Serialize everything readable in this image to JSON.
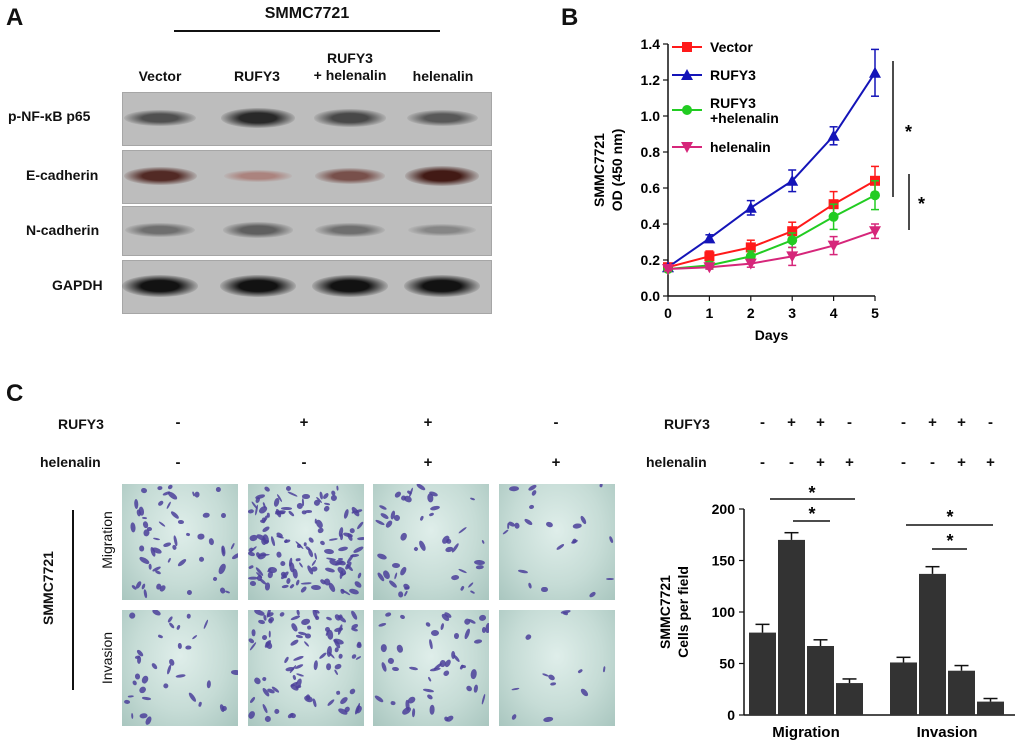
{
  "panels": {
    "a": "A",
    "b": "B",
    "c": "C"
  },
  "panel_a": {
    "cell_line": "SMMC7721",
    "lanes": [
      "Vector",
      "RUFY3",
      "RUFY3\n+ helenalin",
      "helenalin"
    ],
    "rows": [
      "p-NF-κB p65",
      "E-cadherin",
      "N-cadherin",
      "GAPDH"
    ],
    "band_intensity": [
      [
        0.55,
        0.8,
        0.6,
        0.5
      ],
      [
        0.7,
        0.12,
        0.45,
        0.8
      ],
      [
        0.35,
        0.45,
        0.35,
        0.2
      ],
      [
        0.95,
        0.95,
        0.95,
        0.95
      ]
    ]
  },
  "chart_data": [
    {
      "type": "line",
      "ylabel": "SMMC7721\nOD (450 nm)",
      "xlabel": "Days",
      "x": [
        0,
        1,
        2,
        3,
        4,
        5
      ],
      "xlim": [
        0,
        5
      ],
      "ylim": [
        0.0,
        1.4
      ],
      "yticks": [
        "0.0",
        "0.2",
        "0.4",
        "0.6",
        "0.8",
        "1.0",
        "1.2",
        "1.4"
      ],
      "legend_position": "top-left",
      "series": [
        {
          "name": "Vector",
          "color": "#ff1a1a",
          "marker": "square",
          "values": [
            0.16,
            0.22,
            0.27,
            0.36,
            0.51,
            0.64
          ],
          "errors": [
            0.01,
            0.03,
            0.04,
            0.05,
            0.07,
            0.08
          ]
        },
        {
          "name": "RUFY3",
          "color": "#1414b8",
          "marker": "triangle-up",
          "values": [
            0.16,
            0.32,
            0.49,
            0.64,
            0.89,
            1.24
          ],
          "errors": [
            0.01,
            0.02,
            0.04,
            0.06,
            0.05,
            0.13
          ]
        },
        {
          "name": "RUFY3\n+helenalin",
          "color": "#22cc22",
          "marker": "circle",
          "values": [
            0.15,
            0.17,
            0.22,
            0.31,
            0.44,
            0.56
          ],
          "errors": [
            0.01,
            0.02,
            0.03,
            0.04,
            0.07,
            0.08
          ]
        },
        {
          "name": "helenalin",
          "color": "#d6267a",
          "marker": "triangle-down",
          "values": [
            0.15,
            0.16,
            0.18,
            0.22,
            0.28,
            0.36
          ],
          "errors": [
            0.01,
            0.01,
            0.02,
            0.05,
            0.05,
            0.04
          ]
        }
      ],
      "significance": [
        "*",
        "*"
      ]
    },
    {
      "type": "bar",
      "ylabel": "SMMC7721\nCells per field",
      "ylim": [
        0,
        200
      ],
      "yticks": [
        "0",
        "50",
        "100",
        "150",
        "200"
      ],
      "groups": [
        "Migration",
        "Invasion"
      ],
      "color": "#333333",
      "values": [
        [
          80,
          170,
          67,
          31
        ],
        [
          51,
          137,
          43,
          13
        ]
      ],
      "errors": [
        [
          8,
          7,
          6,
          4
        ],
        [
          5,
          7,
          5,
          3
        ]
      ],
      "significance": [
        "*",
        "*",
        "*",
        "*"
      ]
    }
  ],
  "panel_c": {
    "treatment_rows": [
      {
        "label": "RUFY3",
        "values": [
          "-",
          "+",
          "+",
          "-"
        ]
      },
      {
        "label": "helenalin",
        "values": [
          "-",
          "-",
          "+",
          "+"
        ]
      }
    ],
    "cell_line": "SMMC7721",
    "assays": [
      "Migration",
      "Invasion"
    ],
    "density": [
      [
        55,
        130,
        45,
        22
      ],
      [
        35,
        90,
        48,
        12
      ]
    ]
  }
}
